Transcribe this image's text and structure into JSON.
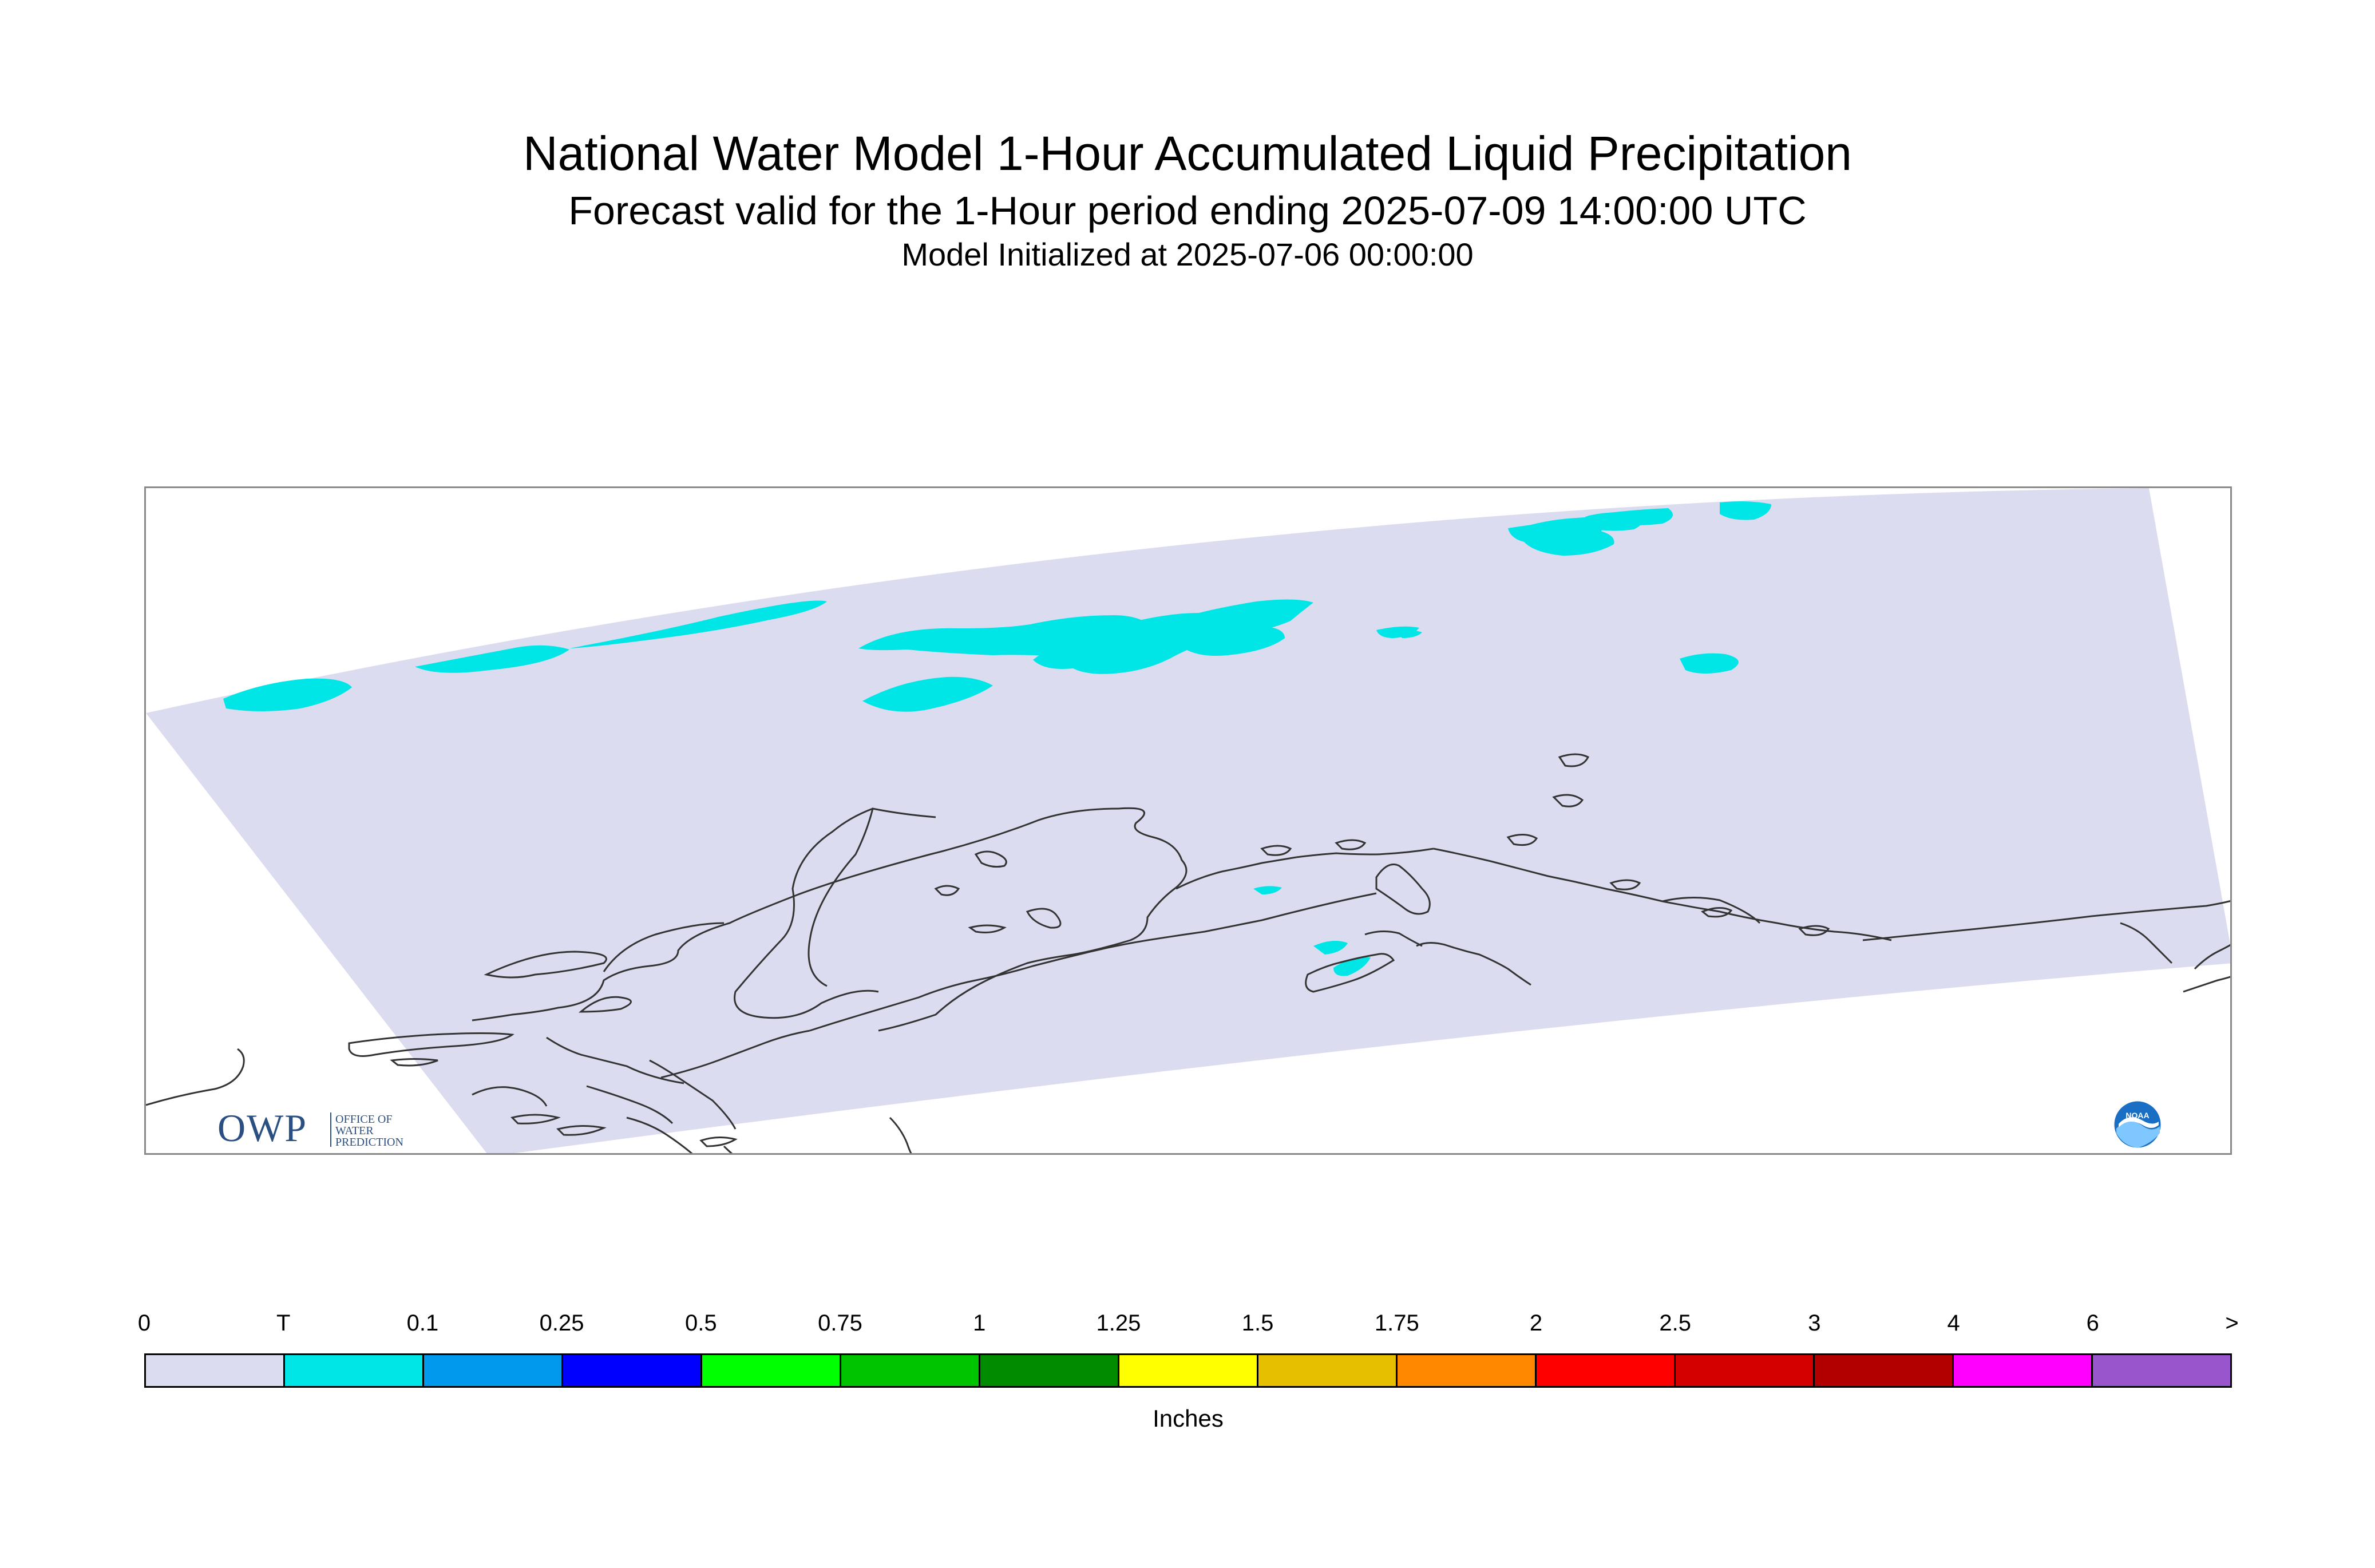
{
  "titles": {
    "main": "National Water Model 1-Hour Accumulated Liquid Precipitation",
    "forecast": "Forecast valid for the 1-Hour period ending 2025-07-09 14:00:00 UTC",
    "init": "Model Initialized at 2025-07-06 00:00:00"
  },
  "map": {
    "domain_color": "#dcdcf0",
    "precip_color": "#00e5e5",
    "coastline_color": "#333333",
    "frame_color": "#8a8a8a"
  },
  "logos": {
    "owp": {
      "mark": "OWP",
      "line1": "OFFICE OF",
      "line2": "WATER",
      "line3": "PREDICTION",
      "color": "#2a4f82"
    },
    "noaa": {
      "mark": "NOAA",
      "color": "#1a6fc4"
    }
  },
  "legend": {
    "ticks": [
      "0",
      "T",
      "0.1",
      "0.25",
      "0.5",
      "0.75",
      "1",
      "1.25",
      "1.5",
      "1.75",
      "2",
      "2.5",
      "3",
      "4",
      "6",
      ">"
    ],
    "colors": [
      "#dcdcf0",
      "#00e5e5",
      "#0099ee",
      "#0000ff",
      "#00ff00",
      "#00c400",
      "#008c00",
      "#ffff00",
      "#e5bf00",
      "#ff8800",
      "#ff0000",
      "#d40000",
      "#b20000",
      "#ff00ff",
      "#9955cc"
    ],
    "unit": "Inches"
  }
}
